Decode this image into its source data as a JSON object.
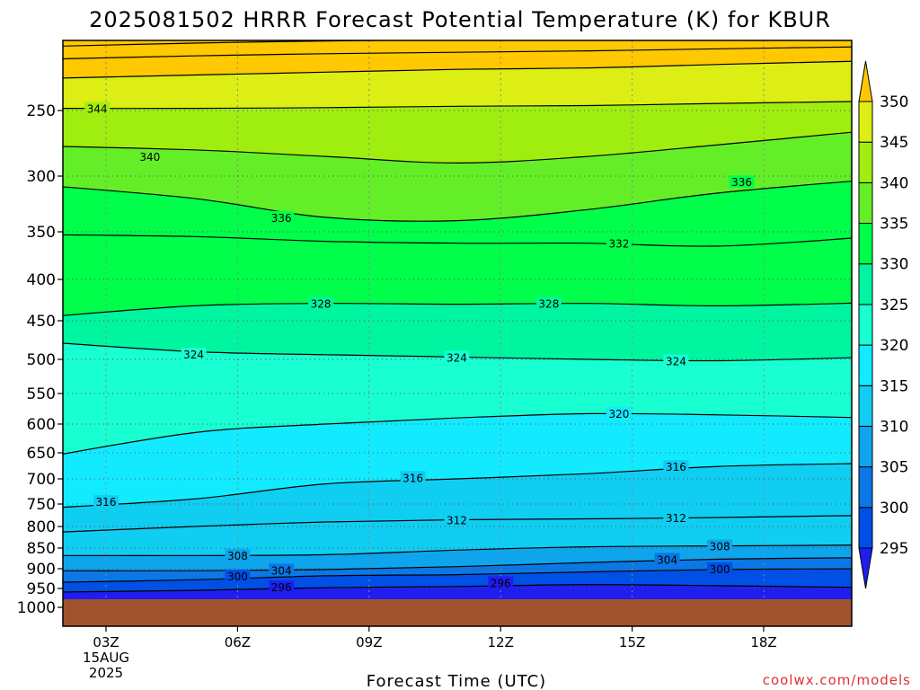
{
  "chart_data": {
    "type": "heatmap",
    "title": "2025081502 HRRR Forecast Potential Temperature (K) for KBUR",
    "xlabel": "Forecast Time (UTC)",
    "watermark": "coolwx.com/models",
    "y_ticks": [
      250,
      300,
      350,
      400,
      450,
      500,
      550,
      600,
      650,
      700,
      750,
      800,
      850,
      900,
      950,
      1000
    ],
    "x_ticks": [
      {
        "t": 0,
        "label": "03Z",
        "sub1": "15AUG",
        "sub2": "2025"
      },
      {
        "t": 3,
        "label": "06Z"
      },
      {
        "t": 6,
        "label": "09Z"
      },
      {
        "t": 9,
        "label": "12Z"
      },
      {
        "t": 12,
        "label": "15Z"
      },
      {
        "t": 15,
        "label": "18Z"
      }
    ],
    "colorbar": {
      "levels": [
        295,
        300,
        305,
        310,
        315,
        320,
        325,
        330,
        335,
        340,
        345,
        350
      ],
      "colors": [
        "#1e1ef0",
        "#0050e6",
        "#0a78e6",
        "#0ea5ed",
        "#10cdf2",
        "#12ebff",
        "#18ffd2",
        "#00f5a0",
        "#00ff4a",
        "#64ee28",
        "#a0ee10",
        "#dcee14",
        "#fff000",
        "#ffc800"
      ]
    },
    "contour_labels": [
      {
        "value": "344",
        "t": -0.2,
        "p": 247
      },
      {
        "value": "340",
        "t": 1.0,
        "p": 285
      },
      {
        "value": "336",
        "t": 4.0,
        "p": 337
      },
      {
        "value": "336",
        "t": 14.5,
        "p": 305
      },
      {
        "value": "332",
        "t": 11.7,
        "p": 362
      },
      {
        "value": "328",
        "t": 4.9,
        "p": 429
      },
      {
        "value": "328",
        "t": 10.1,
        "p": 429
      },
      {
        "value": "324",
        "t": 2.0,
        "p": 493
      },
      {
        "value": "324",
        "t": 8.0,
        "p": 497
      },
      {
        "value": "324",
        "t": 13.0,
        "p": 502
      },
      {
        "value": "320",
        "t": 11.7,
        "p": 582
      },
      {
        "value": "316",
        "t": 13.0,
        "p": 676
      },
      {
        "value": "316",
        "t": 7.0,
        "p": 697
      },
      {
        "value": "316",
        "t": 0.0,
        "p": 745
      },
      {
        "value": "312",
        "t": 8.0,
        "p": 785
      },
      {
        "value": "312",
        "t": 13.0,
        "p": 780
      },
      {
        "value": "308",
        "t": 14.0,
        "p": 845
      },
      {
        "value": "308",
        "t": 3.0,
        "p": 867
      },
      {
        "value": "304",
        "t": 12.8,
        "p": 877
      },
      {
        "value": "304",
        "t": 4.0,
        "p": 903
      },
      {
        "value": "300",
        "t": 14.0,
        "p": 900
      },
      {
        "value": "300",
        "t": 3.0,
        "p": 918
      },
      {
        "value": "296",
        "t": 9.0,
        "p": 935
      },
      {
        "value": "296",
        "t": 4.0,
        "p": 946
      }
    ]
  }
}
